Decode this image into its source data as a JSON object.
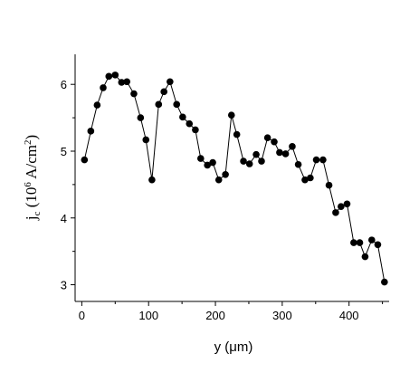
{
  "chart_data": {
    "type": "line",
    "xlabel": "y (μm)",
    "ylabel_parts": [
      "j",
      "c",
      " (10",
      "6",
      " A/cm",
      "2",
      ")"
    ],
    "x": [
      4,
      13.5,
      23,
      32,
      40.5,
      50,
      59.5,
      67.5,
      78,
      88,
      96,
      105,
      115,
      123,
      132,
      142,
      151,
      161,
      170,
      178,
      188,
      196,
      205,
      215,
      224,
      232,
      242,
      251,
      261,
      269,
      278,
      288,
      296,
      305,
      315,
      324,
      334,
      342,
      351,
      361,
      370,
      380,
      388,
      397,
      407,
      416,
      424,
      434,
      443,
      453
    ],
    "values": [
      4.87,
      5.3,
      5.69,
      5.95,
      6.12,
      6.14,
      6.03,
      6.04,
      5.86,
      5.5,
      5.17,
      4.57,
      5.7,
      5.89,
      6.04,
      5.7,
      5.51,
      5.41,
      5.32,
      4.89,
      4.79,
      4.83,
      4.57,
      4.65,
      5.54,
      5.25,
      4.85,
      4.81,
      4.95,
      4.85,
      5.2,
      5.14,
      4.98,
      4.96,
      5.07,
      4.8,
      4.57,
      4.6,
      4.87,
      4.87,
      4.49,
      4.08,
      4.17,
      4.21,
      3.63,
      3.63,
      3.42,
      3.67,
      3.6,
      3.04
    ],
    "color": "#000000",
    "xlim": [
      -10,
      460
    ],
    "xticks": [
      0,
      100,
      200,
      300,
      400
    ],
    "xminorticks": [
      50,
      150,
      250,
      350,
      450
    ],
    "ylim": [
      2.75,
      6.45
    ],
    "yticks": [
      3,
      4,
      5,
      6
    ],
    "yminorticks": [
      3.5,
      4.5,
      5.5
    ]
  }
}
